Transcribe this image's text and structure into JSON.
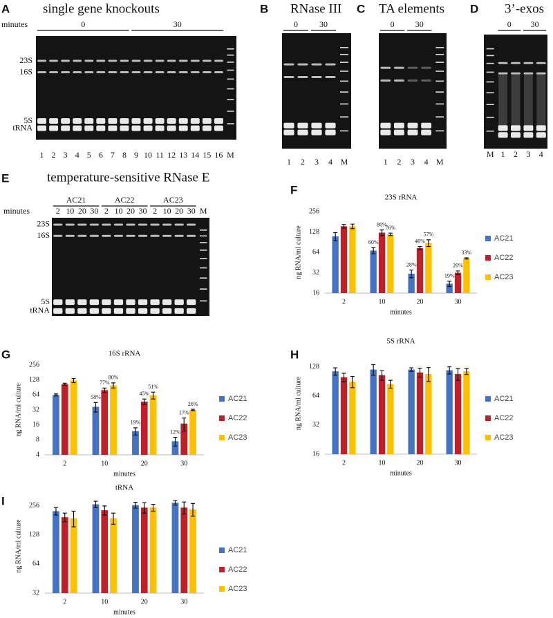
{
  "gels": [
    {
      "panel": "A",
      "title": "single gene knockouts",
      "axis_label": "minutes",
      "groups": [
        "0",
        "30"
      ],
      "lanes": [
        "1",
        "2",
        "3",
        "4",
        "5",
        "6",
        "7",
        "8",
        "9",
        "10",
        "11",
        "12",
        "13",
        "14",
        "15",
        "16",
        "M"
      ],
      "markers": [
        "23S",
        "16S",
        "5S",
        "tRNA"
      ]
    },
    {
      "panel": "B",
      "title": "RNase III",
      "groups": [
        "0",
        "30"
      ],
      "lanes": [
        "1",
        "2",
        "3",
        "4",
        "M"
      ]
    },
    {
      "panel": "C",
      "title": "TA elements",
      "groups": [
        "0",
        "30"
      ],
      "lanes": [
        "1",
        "2",
        "3",
        "4",
        "M"
      ]
    },
    {
      "panel": "D",
      "title": "3’-exos",
      "groups": [
        "0",
        "30"
      ],
      "lanes": [
        "M",
        "1",
        "2",
        "3",
        "4"
      ]
    },
    {
      "panel": "E",
      "title": "temperature-sensitive RNase E",
      "axis_label": "minutes",
      "groups": [
        "AC21",
        "AC22",
        "AC23"
      ],
      "lanes": [
        "2",
        "10",
        "20",
        "30",
        "2",
        "10",
        "20",
        "30",
        "2",
        "10",
        "20",
        "30",
        "M"
      ],
      "markers": [
        "23S",
        "16S",
        "5S",
        "tRNA"
      ]
    }
  ],
  "chart_data": [
    {
      "type": "bar",
      "panel": "F",
      "title": "23S rRNA",
      "x_label": "minutes",
      "y_label": "ng RNA/ml culture",
      "categories": [
        "2",
        "10",
        "20",
        "30"
      ],
      "log_scale": true,
      "ylim": [
        16,
        256
      ],
      "yticks": [
        16,
        32,
        64,
        128,
        256
      ],
      "series": [
        {
          "name": "AC21",
          "color": "#4472c4",
          "values": [
            110,
            68,
            31,
            22
          ],
          "errors": [
            15,
            7,
            4,
            2
          ],
          "percent_labels": [
            null,
            "60%",
            "28%",
            "19%"
          ]
        },
        {
          "name": "AC22",
          "color": "#c0202a",
          "values": [
            155,
            125,
            74,
            32
          ],
          "errors": [
            10,
            12,
            4,
            2
          ],
          "percent_labels": [
            null,
            "80%",
            "46%",
            "20%"
          ]
        },
        {
          "name": "AC23",
          "color": "#ffc000",
          "values": [
            155,
            118,
            88,
            52
          ],
          "errors": [
            12,
            5,
            10,
            1
          ],
          "percent_labels": [
            null,
            "76%",
            "57%",
            "33%"
          ]
        }
      ]
    },
    {
      "type": "bar",
      "panel": "G",
      "title": "16S rRNA",
      "x_label": "minutes",
      "y_label": "ng RNA/ml culture",
      "categories": [
        "2",
        "10",
        "20",
        "30"
      ],
      "log_scale": true,
      "ylim": [
        4,
        256
      ],
      "yticks": [
        4,
        8,
        16,
        32,
        64,
        128,
        256
      ],
      "series": [
        {
          "name": "AC21",
          "color": "#4472c4",
          "values": [
            64,
            37,
            12,
            7.5
          ],
          "errors": [
            3,
            8,
            2,
            1.5
          ],
          "percent_labels": [
            null,
            "58%",
            "19%",
            "12%"
          ]
        },
        {
          "name": "AC22",
          "color": "#c0202a",
          "values": [
            105,
            80,
            47,
            17
          ],
          "errors": [
            5,
            8,
            6,
            5
          ],
          "percent_labels": [
            null,
            "77%",
            "45%",
            "17%"
          ]
        },
        {
          "name": "AC23",
          "color": "#ffc000",
          "values": [
            125,
            100,
            63,
            32
          ],
          "errors": [
            12,
            12,
            10,
            1
          ],
          "percent_labels": [
            null,
            "80%",
            "51%",
            "26%"
          ]
        }
      ]
    },
    {
      "type": "bar",
      "panel": "H",
      "title": "5S rRNA",
      "x_label": "minutes",
      "y_label": "ng RNA/ml culture",
      "categories": [
        "2",
        "10",
        "20",
        "30"
      ],
      "log_scale": true,
      "ylim": [
        16,
        180
      ],
      "yticks": [
        16,
        32,
        64,
        128
      ],
      "series": [
        {
          "name": "AC21",
          "color": "#4472c4",
          "values": [
            115,
            120,
            120,
            118
          ],
          "errors": [
            10,
            15,
            5,
            10
          ]
        },
        {
          "name": "AC22",
          "color": "#c0202a",
          "values": [
            100,
            105,
            112,
            108
          ],
          "errors": [
            10,
            12,
            12,
            15
          ]
        },
        {
          "name": "AC23",
          "color": "#ffc000",
          "values": [
            90,
            85,
            108,
            115
          ],
          "errors": [
            12,
            8,
            18,
            8
          ]
        }
      ]
    },
    {
      "type": "bar",
      "panel": "I",
      "title": "tRNA",
      "x_label": "minutes",
      "y_label": "ng RNA/ml culture",
      "categories": [
        "2",
        "10",
        "20",
        "30"
      ],
      "log_scale": true,
      "ylim": [
        32,
        300
      ],
      "yticks": [
        32,
        64,
        128,
        256
      ],
      "series": [
        {
          "name": "AC21",
          "color": "#4472c4",
          "values": [
            225,
            265,
            260,
            275
          ],
          "errors": [
            20,
            20,
            18,
            15
          ]
        },
        {
          "name": "AC22",
          "color": "#c0202a",
          "values": [
            195,
            230,
            245,
            245
          ],
          "errors": [
            20,
            25,
            30,
            35
          ]
        },
        {
          "name": "AC23",
          "color": "#ffc000",
          "values": [
            190,
            190,
            245,
            235
          ],
          "errors": [
            35,
            25,
            20,
            35
          ]
        }
      ]
    }
  ]
}
